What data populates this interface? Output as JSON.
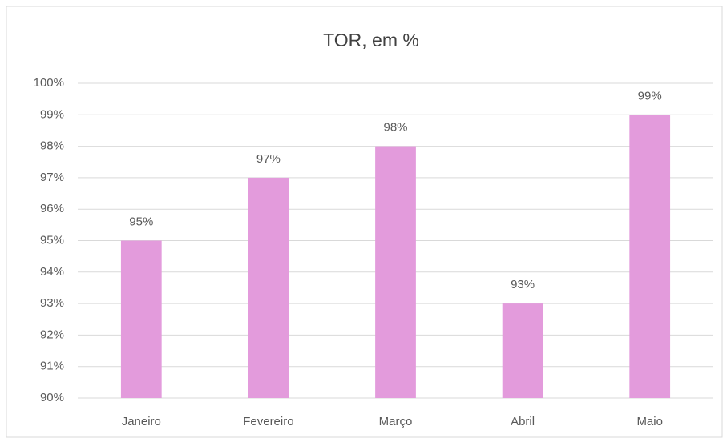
{
  "chart_data": {
    "type": "bar",
    "title": "TOR, em %",
    "categories": [
      "Janeiro",
      "Fevereiro",
      "Março",
      "Abril",
      "Maio"
    ],
    "values": [
      95,
      97,
      98,
      93,
      99
    ],
    "value_labels": [
      "95%",
      "97%",
      "98%",
      "93%",
      "99%"
    ],
    "color": "#e39bdc",
    "ylim": [
      90,
      100
    ],
    "yticks": [
      {
        "value": 90,
        "label": "90%"
      },
      {
        "value": 91,
        "label": "91%"
      },
      {
        "value": 92,
        "label": "92%"
      },
      {
        "value": 93,
        "label": "93%"
      },
      {
        "value": 94,
        "label": "94%"
      },
      {
        "value": 95,
        "label": "95%"
      },
      {
        "value": 96,
        "label": "96%"
      },
      {
        "value": 97,
        "label": "97%"
      },
      {
        "value": 98,
        "label": "98%"
      },
      {
        "value": 99,
        "label": "99%"
      },
      {
        "value": 100,
        "label": "100%"
      }
    ],
    "grid": true
  }
}
